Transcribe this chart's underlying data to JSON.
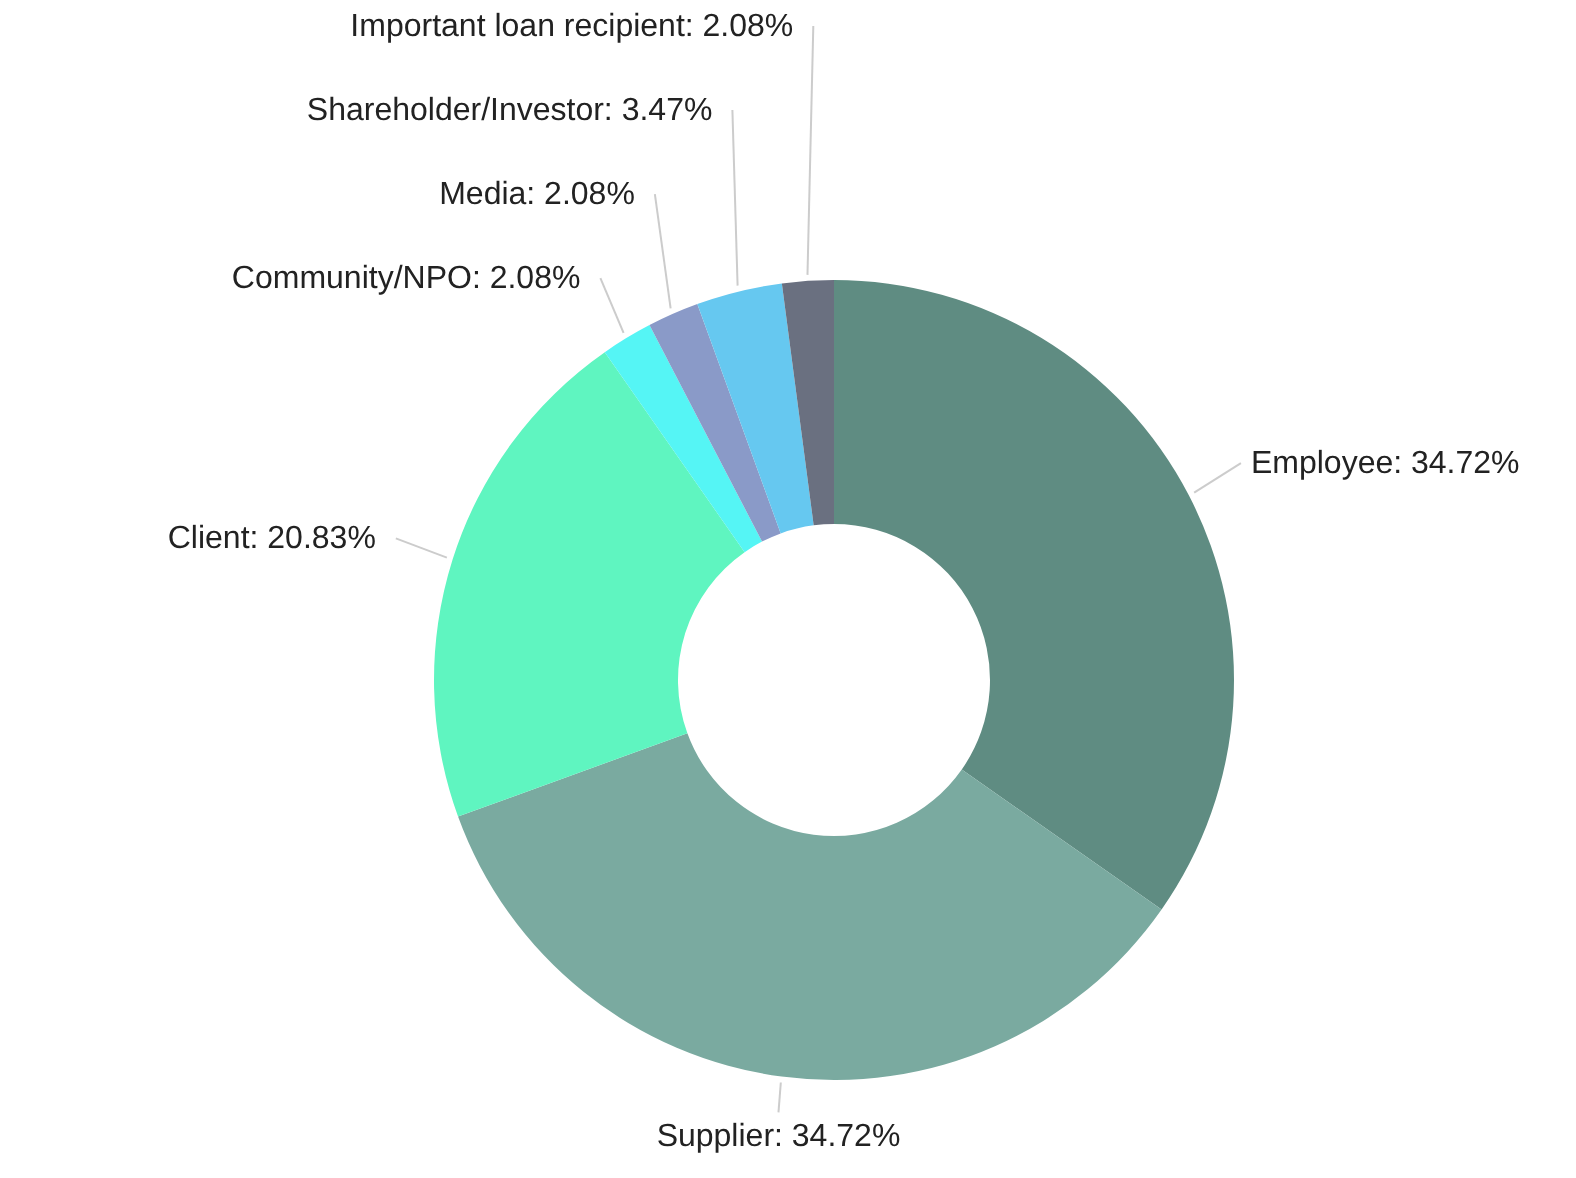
{
  "chart_data": {
    "type": "donut",
    "categories": [
      "Employee",
      "Supplier",
      "Client",
      "Community/NPO",
      "Media",
      "Shareholder/Investor",
      "Important loan recipient"
    ],
    "values": [
      34.72,
      34.72,
      20.83,
      2.08,
      2.08,
      3.47,
      2.08
    ],
    "value_labels": [
      "34.72%",
      "34.72%",
      "20.83%",
      "2.08%",
      "2.08%",
      "3.47%",
      "2.08%"
    ],
    "colors": [
      "#5f8c82",
      "#7aaaa0",
      "#5ff5c0",
      "#55f5f5",
      "#8a9ac8",
      "#66c8f0",
      "#6a7080"
    ]
  }
}
